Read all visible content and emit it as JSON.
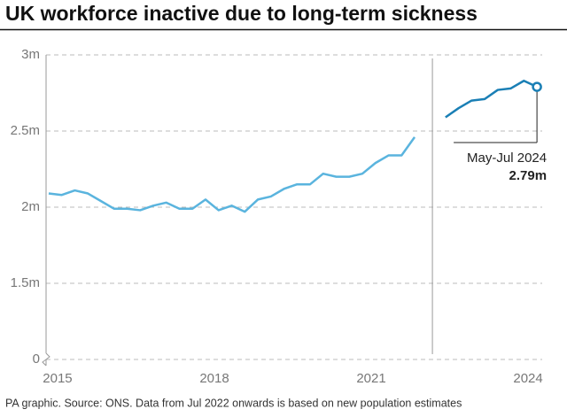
{
  "chart_data": {
    "type": "line",
    "title": "UK workforce inactive due to long-term sickness",
    "source": "PA graphic. Source: ONS. Data from Jul 2022 onwards is based on new population estimates",
    "xlim": [
      2014.78,
      2024.27
    ],
    "xticks": [
      2015,
      2018,
      2021,
      2024
    ],
    "ylim": [
      0,
      3
    ],
    "axis_break": [
      0,
      1
    ],
    "yticks": [
      0,
      {
        "value": 1.5,
        "label": "1.5m"
      },
      {
        "value": 2,
        "label": "2m"
      },
      {
        "value": 2.5,
        "label": "2.5m"
      },
      {
        "value": 3,
        "label": "3m"
      }
    ],
    "grid": true,
    "break_x": 2022.17,
    "annotation": "May-Jul 2024",
    "series": [
      {
        "color": "#5ab4de",
        "x": [
          2014.83,
          2015.08,
          2015.33,
          2015.58,
          2015.83,
          2016.08,
          2016.33,
          2016.58,
          2016.83,
          2017.08,
          2017.33,
          2017.58,
          2017.83,
          2018.08,
          2018.33,
          2018.58,
          2018.83,
          2019.08,
          2019.33,
          2019.58,
          2019.83,
          2020.08,
          2020.33,
          2020.58,
          2020.83,
          2021.08,
          2021.33,
          2021.58,
          2021.83
        ],
        "values": [
          2.09,
          2.08,
          2.11,
          2.09,
          2.04,
          1.99,
          1.99,
          1.98,
          2.01,
          2.03,
          1.99,
          1.99,
          2.05,
          1.98,
          2.01,
          1.97,
          2.05,
          2.07,
          2.12,
          2.15,
          2.15,
          2.22,
          2.2,
          2.2,
          2.22,
          2.29,
          2.34,
          2.34,
          2.46
        ]
      },
      {
        "color": "#1a7fb5",
        "x": [
          2022.42,
          2022.67,
          2022.92,
          2023.17,
          2023.42,
          2023.67,
          2023.92,
          2024.17
        ],
        "values": [
          2.59,
          2.65,
          2.7,
          2.71,
          2.77,
          2.78,
          2.83,
          2.79
        ],
        "value_labels": [
          null,
          null,
          null,
          null,
          null,
          null,
          null,
          "2.79m"
        ]
      }
    ]
  }
}
